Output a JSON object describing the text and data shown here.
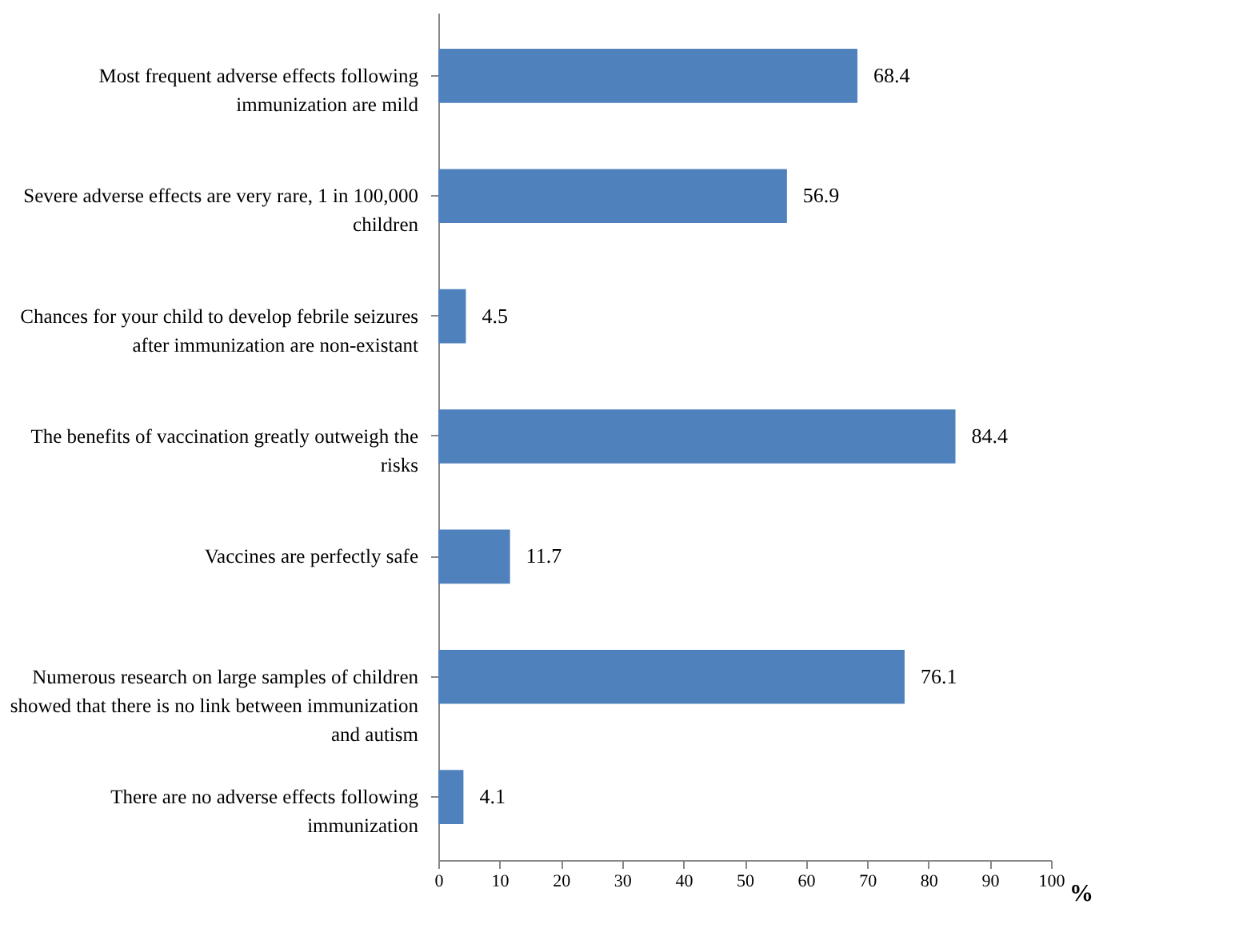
{
  "chart_data": {
    "type": "bar",
    "orientation": "horizontal",
    "xlabel": "%",
    "categories": [
      "Most frequent adverse effects following immunization are mild",
      "Severe adverse effects are very rare, 1 in 100,000 children",
      "Chances for your child to develop febrile seizures after immunization are non-existant",
      "The benefits of vaccination greatly outweigh the risks",
      "Vaccines are perfectly safe",
      "Numerous research on large samples of children showed that there is no link between immunization and autism",
      "There are no adverse effects following immunization"
    ],
    "values": [
      68.4,
      56.9,
      4.5,
      84.4,
      11.7,
      76.1,
      4.1
    ],
    "color": "#4f81bd",
    "xlim": [
      0,
      100
    ],
    "xticks": [
      0,
      10,
      20,
      30,
      40,
      50,
      60,
      70,
      80,
      90,
      100
    ],
    "data_labels": true,
    "grid": false
  }
}
